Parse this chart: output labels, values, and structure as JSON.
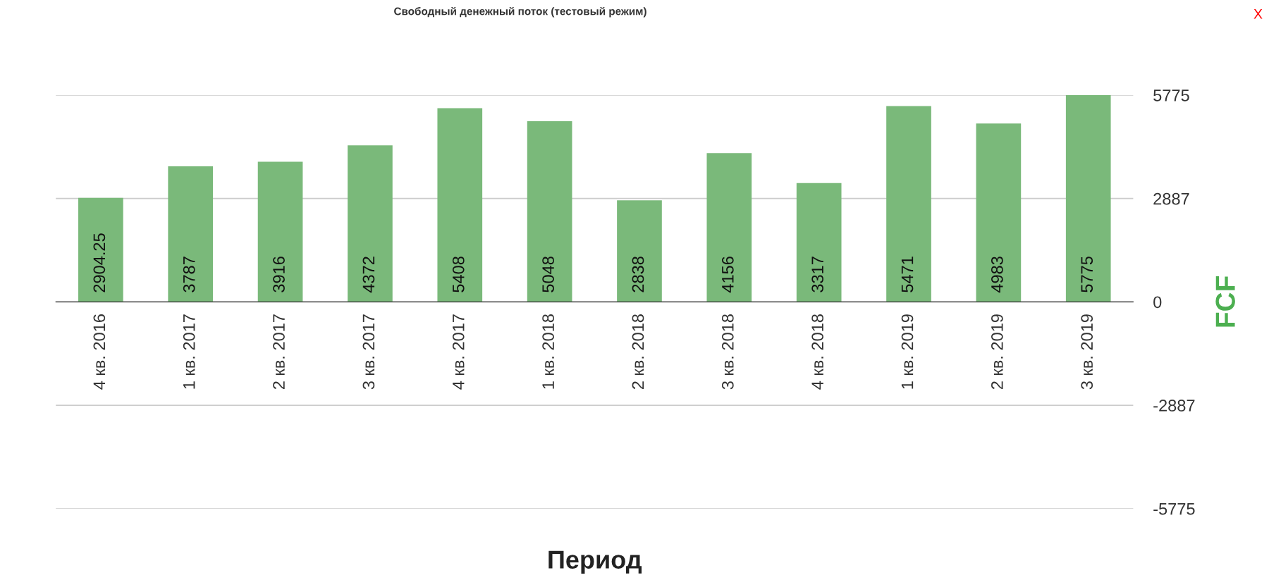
{
  "chart_data": {
    "type": "bar",
    "title": "Свободный денежный поток (тестовый режим)",
    "xlabel": "Период",
    "ylabel": "FCF",
    "categories": [
      "4 кв. 2016",
      "1 кв. 2017",
      "2 кв. 2017",
      "3 кв. 2017",
      "4 кв. 2017",
      "1 кв. 2018",
      "2 кв. 2018",
      "3 кв. 2018",
      "4 кв. 2018",
      "1 кв. 2019",
      "2 кв. 2019",
      "3 кв. 2019"
    ],
    "values": [
      2904.25,
      3787,
      3916,
      4372,
      5408,
      5048,
      2838,
      4156,
      3317,
      5471,
      4983,
      5775
    ],
    "color": "#7ab97a",
    "ylim": [
      -5775,
      5775
    ],
    "yticks": [
      -5775,
      -2887,
      0,
      2887,
      5775
    ],
    "grid": "y",
    "data_labels": true,
    "legend": false,
    "annotations": [
      "X"
    ]
  }
}
